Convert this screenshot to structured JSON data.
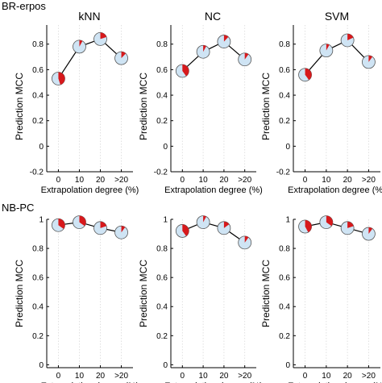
{
  "figure": {
    "row_labels": [
      "BR-erpos",
      "NB-PC"
    ],
    "panel_titles": [
      "kNN",
      "NC",
      "SVM"
    ],
    "ylabel": "Prediction MCC",
    "xlabel": "Extrapolation degree (%)",
    "x_ticks": [
      "0",
      "10",
      "20",
      ">20"
    ],
    "row1_y_ticks": [
      "-0.2",
      "0",
      "0.2",
      "0.4",
      "0.6",
      "0.8"
    ],
    "row2_y_ticks": [
      "0",
      "0.2",
      "0.4",
      "0.6",
      "0.8",
      "1"
    ]
  },
  "colors": {
    "marker_fill": "#cfe4f4",
    "marker_slice": "#d7191c",
    "line": "#000000",
    "grid": "#d9d9d9"
  },
  "chart_data": [
    {
      "type": "line",
      "row": "BR-erpos",
      "title": "kNN",
      "xlabel": "Extrapolation degree (%)",
      "ylabel": "Prediction MCC",
      "categories": [
        "0",
        "10",
        "20",
        ">20"
      ],
      "values": [
        0.53,
        0.78,
        0.84,
        0.69
      ],
      "slice_fraction": [
        0.45,
        0.08,
        0.2,
        0.12
      ],
      "ylim": [
        -0.2,
        0.95
      ],
      "grid": "vertical dotted"
    },
    {
      "type": "line",
      "row": "BR-erpos",
      "title": "NC",
      "xlabel": "Extrapolation degree (%)",
      "ylabel": "Prediction MCC",
      "categories": [
        "0",
        "10",
        "20",
        ">20"
      ],
      "values": [
        0.59,
        0.74,
        0.82,
        0.68
      ],
      "slice_fraction": [
        0.4,
        0.08,
        0.12,
        0.1
      ],
      "ylim": [
        -0.2,
        0.95
      ],
      "grid": "vertical dotted"
    },
    {
      "type": "line",
      "row": "BR-erpos",
      "title": "SVM",
      "xlabel": "Extrapolation degree (%)",
      "ylabel": "Prediction MCC",
      "categories": [
        "0",
        "10",
        "20",
        ">20"
      ],
      "values": [
        0.56,
        0.75,
        0.83,
        0.66
      ],
      "slice_fraction": [
        0.4,
        0.08,
        0.18,
        0.1
      ],
      "ylim": [
        -0.2,
        0.95
      ],
      "grid": "vertical dotted"
    },
    {
      "type": "line",
      "row": "NB-PC",
      "title": "",
      "xlabel": "Extrapolation degree (%)",
      "ylabel": "Prediction MCC",
      "categories": [
        "0",
        "10",
        "20",
        ">20"
      ],
      "values": [
        0.96,
        0.98,
        0.94,
        0.91
      ],
      "slice_fraction": [
        0.35,
        0.35,
        0.2,
        0.1
      ],
      "ylim": [
        -0.02,
        1.0
      ],
      "grid": "vertical dotted"
    },
    {
      "type": "line",
      "row": "NB-PC",
      "title": "",
      "xlabel": "Extrapolation degree (%)",
      "ylabel": "Prediction MCC",
      "categories": [
        "0",
        "10",
        "20",
        ">20"
      ],
      "values": [
        0.92,
        0.98,
        0.94,
        0.84
      ],
      "slice_fraction": [
        0.4,
        0.08,
        0.15,
        0.1
      ],
      "ylim": [
        -0.02,
        1.0
      ],
      "grid": "vertical dotted"
    },
    {
      "type": "line",
      "row": "NB-PC",
      "title": "",
      "xlabel": "Extrapolation degree (%)",
      "ylabel": "Prediction MCC",
      "categories": [
        "0",
        "10",
        "20",
        ">20"
      ],
      "values": [
        0.95,
        0.98,
        0.94,
        0.9
      ],
      "slice_fraction": [
        0.42,
        0.35,
        0.2,
        0.1
      ],
      "ylim": [
        -0.02,
        1.0
      ],
      "grid": "vertical dotted"
    }
  ]
}
